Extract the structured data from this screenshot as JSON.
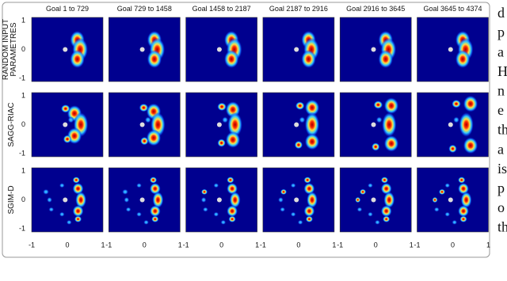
{
  "figure": {
    "columns": [
      "Goal 1 to 729",
      "Goal 729 to 1458",
      "Goal 1458 to 2187",
      "Goal 2187 to 2916",
      "Goal 2916 to 3645",
      "Goal 3645 to 4374"
    ],
    "rows": [
      [
        "RANDOM INPUT",
        "PARAMETRES"
      ],
      [
        "SAGG-RIAC"
      ],
      [
        "SGIM-D"
      ]
    ],
    "yticks": [
      "1",
      "0",
      "-1"
    ],
    "xticks": [
      "-1",
      "0",
      "1"
    ]
  },
  "side_text": [
    "d",
    "p",
    "a",
    "H",
    "n",
    "e",
    "th",
    "a",
    "is",
    "p",
    "o",
    "th"
  ]
}
